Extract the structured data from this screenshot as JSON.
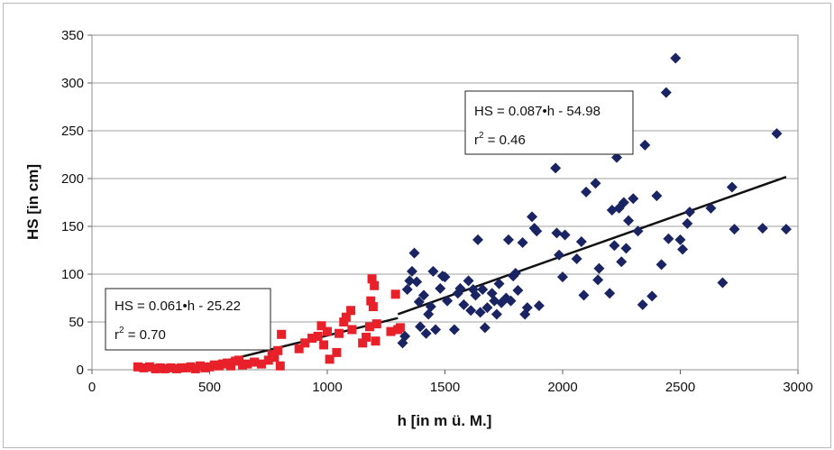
{
  "chart_data": {
    "type": "scatter",
    "xlabel": "h [in m ü. M.]",
    "ylabel": "HS [in cm]",
    "xlim": [
      0,
      3000
    ],
    "ylim": [
      0,
      350
    ],
    "x_ticks": [
      "0",
      "500",
      "1000",
      "1500",
      "2000",
      "2500",
      "3000"
    ],
    "y_ticks": [
      "0",
      "50",
      "100",
      "150",
      "200",
      "250",
      "300",
      "350"
    ],
    "grid": "horizontal",
    "series": [
      {
        "marker": "square",
        "color": "#e8202a",
        "points": [
          [
            195,
            3
          ],
          [
            220,
            2
          ],
          [
            245,
            3
          ],
          [
            270,
            1
          ],
          [
            290,
            2
          ],
          [
            310,
            1
          ],
          [
            335,
            2
          ],
          [
            360,
            1
          ],
          [
            380,
            2
          ],
          [
            400,
            2
          ],
          [
            420,
            3
          ],
          [
            440,
            1
          ],
          [
            460,
            4
          ],
          [
            480,
            2
          ],
          [
            500,
            3
          ],
          [
            520,
            5
          ],
          [
            540,
            4
          ],
          [
            555,
            6
          ],
          [
            575,
            7
          ],
          [
            590,
            4
          ],
          [
            610,
            9
          ],
          [
            625,
            10
          ],
          [
            640,
            5
          ],
          [
            660,
            6
          ],
          [
            690,
            8
          ],
          [
            720,
            6
          ],
          [
            750,
            10
          ],
          [
            765,
            16
          ],
          [
            775,
            13
          ],
          [
            790,
            20
          ],
          [
            800,
            4
          ],
          [
            805,
            37
          ],
          [
            880,
            22
          ],
          [
            905,
            28
          ],
          [
            935,
            33
          ],
          [
            960,
            35
          ],
          [
            975,
            46
          ],
          [
            985,
            26
          ],
          [
            1000,
            40
          ],
          [
            1010,
            11
          ],
          [
            1040,
            18
          ],
          [
            1050,
            38
          ],
          [
            1070,
            50
          ],
          [
            1080,
            55
          ],
          [
            1100,
            62
          ],
          [
            1105,
            42
          ],
          [
            1150,
            28
          ],
          [
            1165,
            34
          ],
          [
            1180,
            45
          ],
          [
            1185,
            72
          ],
          [
            1190,
            95
          ],
          [
            1195,
            66
          ],
          [
            1200,
            88
          ],
          [
            1205,
            30
          ],
          [
            1210,
            48
          ],
          [
            1270,
            40
          ],
          [
            1290,
            79
          ],
          [
            1300,
            42
          ],
          [
            1310,
            44
          ]
        ]
      },
      {
        "marker": "diamond",
        "color": "#1a2463",
        "points": [
          [
            1320,
            28
          ],
          [
            1330,
            35
          ],
          [
            1340,
            84
          ],
          [
            1350,
            93
          ],
          [
            1360,
            103
          ],
          [
            1370,
            122
          ],
          [
            1380,
            92
          ],
          [
            1390,
            71
          ],
          [
            1395,
            45
          ],
          [
            1410,
            78
          ],
          [
            1420,
            38
          ],
          [
            1430,
            58
          ],
          [
            1440,
            66
          ],
          [
            1450,
            103
          ],
          [
            1460,
            42
          ],
          [
            1480,
            85
          ],
          [
            1490,
            98
          ],
          [
            1500,
            97
          ],
          [
            1510,
            72
          ],
          [
            1540,
            42
          ],
          [
            1555,
            80
          ],
          [
            1565,
            85
          ],
          [
            1580,
            68
          ],
          [
            1600,
            93
          ],
          [
            1610,
            62
          ],
          [
            1620,
            84
          ],
          [
            1630,
            78
          ],
          [
            1640,
            136
          ],
          [
            1650,
            60
          ],
          [
            1660,
            84
          ],
          [
            1670,
            44
          ],
          [
            1680,
            65
          ],
          [
            1700,
            80
          ],
          [
            1710,
            72
          ],
          [
            1720,
            58
          ],
          [
            1730,
            90
          ],
          [
            1740,
            70
          ],
          [
            1760,
            75
          ],
          [
            1770,
            136
          ],
          [
            1780,
            72
          ],
          [
            1790,
            98
          ],
          [
            1800,
            101
          ],
          [
            1810,
            83
          ],
          [
            1830,
            133
          ],
          [
            1840,
            58
          ],
          [
            1850,
            65
          ],
          [
            1870,
            160
          ],
          [
            1880,
            148
          ],
          [
            1890,
            145
          ],
          [
            1900,
            67
          ],
          [
            1970,
            211
          ],
          [
            1975,
            143
          ],
          [
            1985,
            120
          ],
          [
            2000,
            97
          ],
          [
            2010,
            141
          ],
          [
            2060,
            116
          ],
          [
            2080,
            134
          ],
          [
            2090,
            78
          ],
          [
            2100,
            186
          ],
          [
            2140,
            195
          ],
          [
            2150,
            94
          ],
          [
            2155,
            106
          ],
          [
            2200,
            80
          ],
          [
            2210,
            167
          ],
          [
            2220,
            130
          ],
          [
            2230,
            222
          ],
          [
            2240,
            169
          ],
          [
            2250,
            113
          ],
          [
            2260,
            175
          ],
          [
            2270,
            127
          ],
          [
            2280,
            156
          ],
          [
            2300,
            179
          ],
          [
            2320,
            145
          ],
          [
            2340,
            68
          ],
          [
            2350,
            235
          ],
          [
            2380,
            77
          ],
          [
            2400,
            182
          ],
          [
            2420,
            110
          ],
          [
            2440,
            290
          ],
          [
            2450,
            137
          ],
          [
            2480,
            326
          ],
          [
            2500,
            136
          ],
          [
            2510,
            126
          ],
          [
            2530,
            153
          ],
          [
            2540,
            165
          ],
          [
            2630,
            169
          ],
          [
            2680,
            91
          ],
          [
            2720,
            191
          ],
          [
            2730,
            147
          ],
          [
            2850,
            148
          ],
          [
            2910,
            247
          ],
          [
            2950,
            147
          ]
        ]
      }
    ],
    "trendlines": [
      {
        "x_range": [
          420,
          1300
        ],
        "slope": 0.061,
        "intercept": -25.22,
        "color": "#111111"
      },
      {
        "x_range": [
          1300,
          2950
        ],
        "slope": 0.087,
        "intercept": -54.98,
        "color": "#111111"
      }
    ],
    "annotations": [
      {
        "line1": "HS = 0.087•h - 54.98",
        "line2": "r",
        "sup": "2",
        "line2_rest": " = 0.46"
      },
      {
        "line1": "HS = 0.061•h - 25.22",
        "line2": "r",
        "sup": "2",
        "line2_rest": " = 0.70"
      }
    ]
  }
}
